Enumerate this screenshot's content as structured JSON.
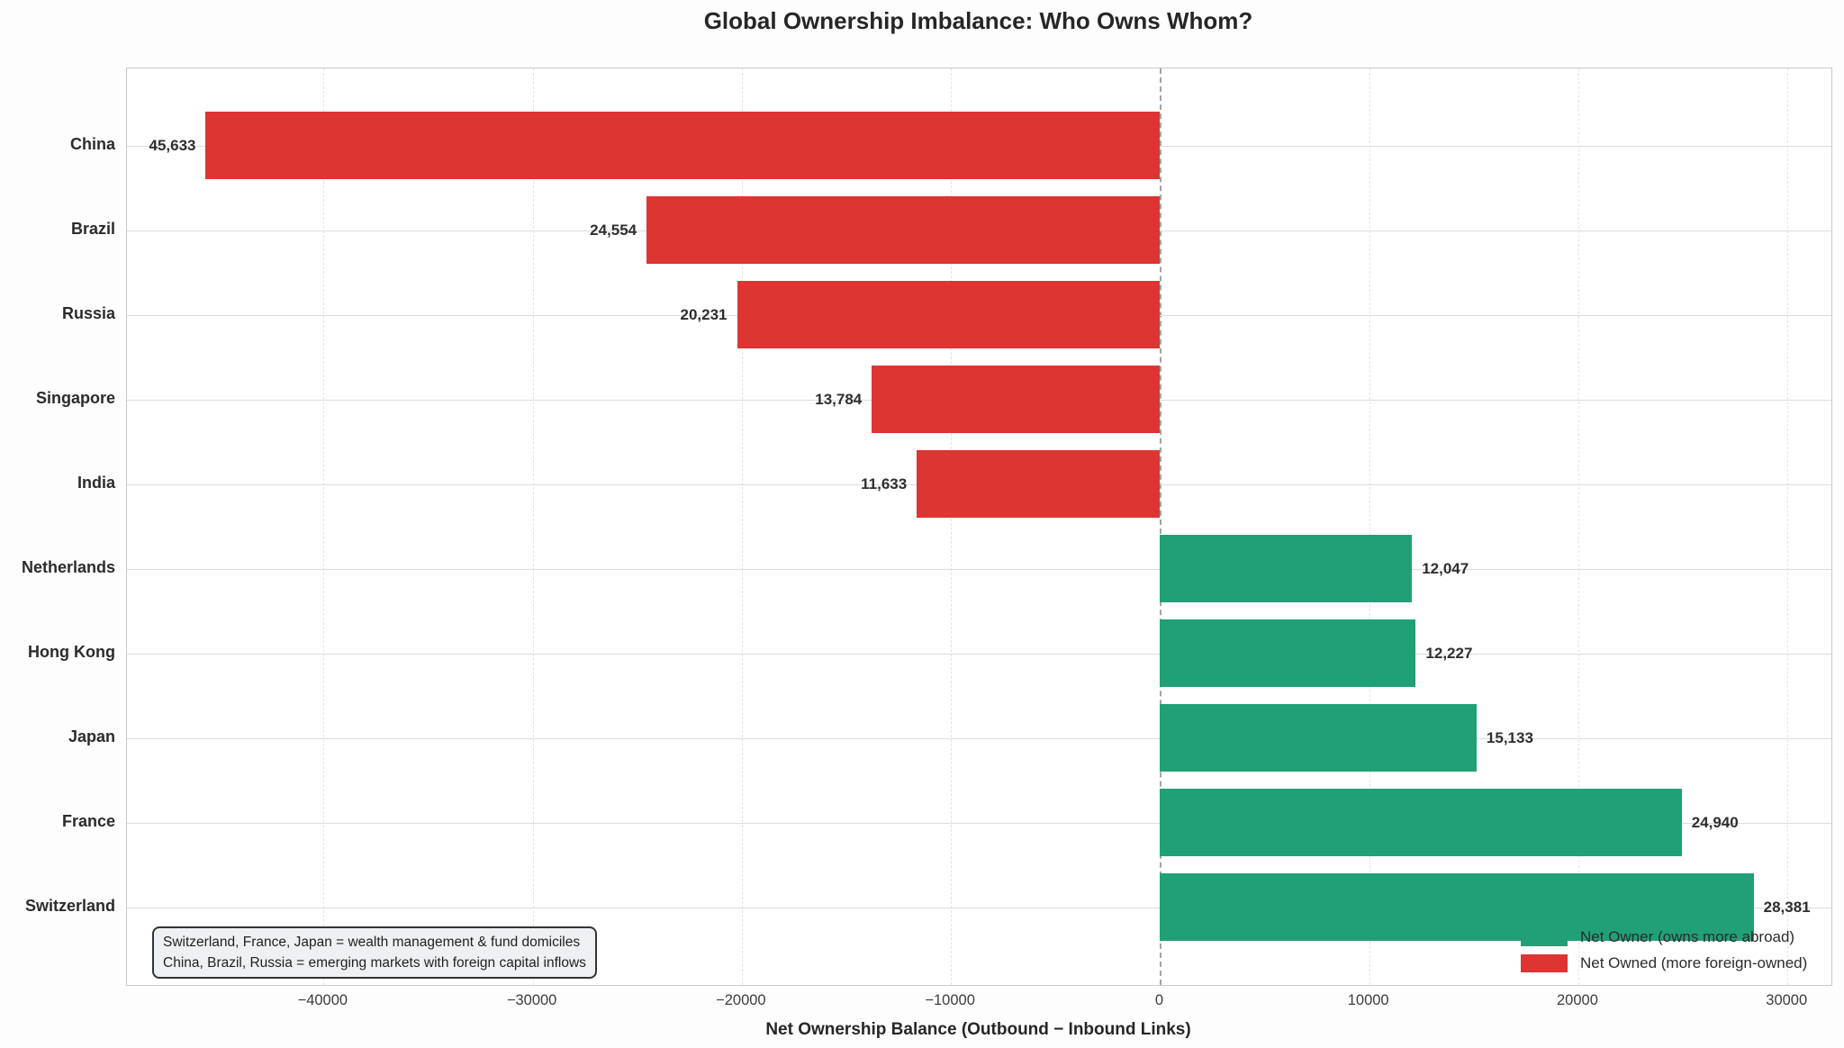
{
  "chart_data": {
    "type": "bar",
    "orientation": "horizontal",
    "title": "Global Ownership Imbalance: Who Owns Whom?",
    "xlabel": "Net Ownership Balance (Outbound − Inbound Links)",
    "ylabel": "",
    "categories": [
      "China",
      "Brazil",
      "Russia",
      "Singapore",
      "India",
      "Netherlands",
      "Hong Kong",
      "Japan",
      "France",
      "Switzerland"
    ],
    "values": [
      -45633,
      -24554,
      -20231,
      -13784,
      -11633,
      12047,
      12227,
      15133,
      24940,
      28381
    ],
    "value_labels": [
      "45,633",
      "24,554",
      "20,231",
      "13,784",
      "11,633",
      "12,047",
      "12,227",
      "15,133",
      "24,940",
      "28,381"
    ],
    "xlim": [
      -49400,
      32100
    ],
    "xticks": [
      -40000,
      -30000,
      -20000,
      -10000,
      0,
      10000,
      20000,
      30000
    ],
    "xtick_labels": [
      "−40000",
      "−30000",
      "−20000",
      "−10000",
      "0",
      "10000",
      "20000",
      "30000"
    ],
    "grid": true,
    "zero_line": true,
    "colors": {
      "positive": "#21a078",
      "negative": "#dd3532"
    },
    "legend": {
      "position": "lower right",
      "entries": [
        {
          "label": "Net Owner (owns more abroad)",
          "color": "#21a078"
        },
        {
          "label": "Net Owned (more foreign-owned)",
          "color": "#dd3532"
        }
      ]
    },
    "annotation": {
      "lines": [
        "Switzerland, France, Japan = wealth management & fund domiciles",
        "China, Brazil, Russia = emerging markets with foreign capital inflows"
      ]
    }
  }
}
